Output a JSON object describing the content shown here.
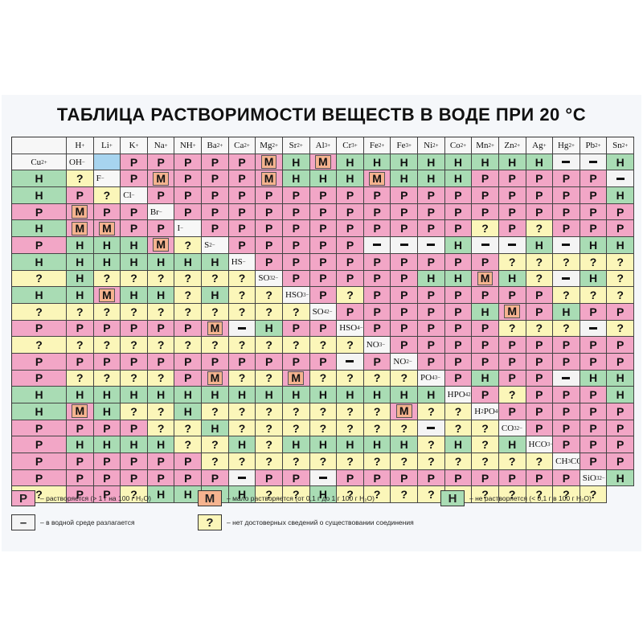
{
  "title": "ТАБЛИЦА РАСТВОРИМОСТИ ВЕЩЕСТВ В ВОДЕ ПРИ 20 °С",
  "chart_data": {
    "type": "table",
    "columns": [
      {
        "base": "H",
        "ch": "+"
      },
      {
        "base": "Li",
        "ch": "+"
      },
      {
        "base": "K",
        "ch": "+"
      },
      {
        "base": "Na",
        "ch": "+"
      },
      {
        "base": "NH",
        "ch": "+"
      },
      {
        "base": "Ba",
        "ch": "2+"
      },
      {
        "base": "Ca",
        "ch": "2+"
      },
      {
        "base": "Mg",
        "ch": "2+"
      },
      {
        "base": "Sr",
        "ch": "2+"
      },
      {
        "base": "Al",
        "ch": "3+"
      },
      {
        "base": "Cr",
        "ch": "3+"
      },
      {
        "base": "Fe",
        "ch": "2+"
      },
      {
        "base": "Fe",
        "ch": "3+"
      },
      {
        "base": "Ni",
        "ch": "2+"
      },
      {
        "base": "Co",
        "ch": "2+"
      },
      {
        "base": "Mn",
        "ch": "2+"
      },
      {
        "base": "Zn",
        "ch": "2+"
      },
      {
        "base": "Ag",
        "ch": "+"
      },
      {
        "base": "Hg",
        "ch": "2+"
      },
      {
        "base": "Pb",
        "ch": "2+"
      },
      {
        "base": "Sn",
        "ch": "2+"
      },
      {
        "base": "Cu",
        "ch": "2+"
      }
    ],
    "rows": [
      {
        "anion": {
          "base": "OH",
          "sub": "",
          "ch": "−"
        },
        "cells": "ERRRRRMNMNNNNNNNNX XNN"
      },
      {
        "anion": {
          "base": "F",
          "sub": "",
          "ch": "−"
        },
        "cells": "RMRRRMNNNMNNNRRRRRX NR"
      },
      {
        "anion": {
          "base": "Cl",
          "sub": "",
          "ch": "−"
        },
        "cells": "RRRRRRRRRRRRRRRRRNRMRR"
      },
      {
        "anion": {
          "base": "Br",
          "sub": "",
          "ch": "−"
        },
        "cells": "RRRRRRRRRRRRRRRRRNMMRR"
      },
      {
        "anion": {
          "base": "I",
          "sub": "",
          "ch": "−"
        },
        "cells": "RRRRRRRRRRDRDRRRRNNNMD"
      },
      {
        "anion": {
          "base": "S",
          "sub": "",
          "ch": "2−"
        },
        "cells": "RRRRRXXXNXXNXNNNNNNNNN"
      },
      {
        "anion": {
          "base": "HS",
          "sub": "",
          "ch": "−"
        },
        "cells": "RRRRRRRRRDDDDDDNDDDDDD"
      },
      {
        "anion": {
          "base": "SO",
          "sub": "3",
          "ch": "2−"
        },
        "cells": "RRRRRNNMNDXNDNNMNNDNDD"
      },
      {
        "anion": {
          "base": "HSO",
          "sub": "3",
          "ch": "−"
        },
        "cells": "RDRRRRRRRDDDDDDDDDDDDD"
      },
      {
        "anion": {
          "base": "SO",
          "sub": "4",
          "ch": "2−"
        },
        "cells": "RRRRRNMRNRRRRRRRRMXNRR"
      },
      {
        "anion": {
          "base": "HSO",
          "sub": "4",
          "ch": "−"
        },
        "cells": "RRRRRDDDXDDDDDDDDDDDDD"
      },
      {
        "anion": {
          "base": "NO",
          "sub": "3",
          "ch": "−"
        },
        "cells": "RRRRRRRRRRRRRRRRRRRRXR"
      },
      {
        "anion": {
          "base": "NO",
          "sub": "2",
          "ch": "−"
        },
        "cells": "RRRRRRRRRDDDDRMDDMDDDD"
      },
      {
        "anion": {
          "base": "PO",
          "sub": "4",
          "ch": "3−"
        },
        "cells": "RNRRXNNNNNNNNNNNNNNNNN"
      },
      {
        "anion": {
          "base": "HPO",
          "sub": "4",
          "ch": "2−"
        },
        "cells": "RDRRRNNMNDDNDDDDDDDMDD"
      },
      {
        "anion": {
          "base": "H",
          "sub": "2",
          "pre": "PO",
          "sub2": "4",
          "ch": "−"
        },
        "cells": "RRRRRRRRRDDNDDDDDDDXDD"
      },
      {
        "anion": {
          "base": "CO",
          "sub": "3",
          "ch": "2−"
        },
        "cells": "RRRRRNNNNDDNDNNNNNDNDN"
      },
      {
        "anion": {
          "base": "HCO",
          "sub": "3",
          "ch": "−"
        },
        "cells": "RRRRRRRRRDDDDDDDDDDDDD"
      },
      {
        "anion": {
          "base": "CH",
          "sub": "3",
          "pre": "COO",
          "sub2": "",
          "ch": "−"
        },
        "cells": "RRRRRRRRRXRRXRRRRRRRRR"
      },
      {
        "anion": {
          "base": "SiO",
          "sub": "3",
          "ch": "2−"
        },
        "cells": "NDRRDNNNNDDNDDDDDDDDDD"
      }
    ],
    "symbols": {
      "R": "Р",
      "M": "М",
      "N": "Н",
      "D": "?",
      "X": "−",
      "E": ""
    }
  },
  "legend": [
    {
      "sym": "Р",
      "cls": "v-R",
      "text": "– растворяется (> 1 г на 100 г H₂O)"
    },
    {
      "sym": "М",
      "cls": "v-M",
      "text": "– мало растворяется (от 0,1 г до 1 г 100 г H₂O)"
    },
    {
      "sym": "Н",
      "cls": "v-N",
      "text": "– не растворяется (< 0,1 г в 100 г H₂O)"
    },
    {
      "sym": "–",
      "cls": "v-X",
      "text": "– в водной среде разлагается"
    },
    {
      "sym": "?",
      "cls": "v-D",
      "text": "– нет достоверных сведений о существовании соединения"
    }
  ],
  "colors": {
    "R": "#f2a6c6",
    "M": "#f5b38f",
    "N": "#a9dcb4",
    "D": "#fbf6b9",
    "X": "#f4f4f4",
    "E": "#a7d4ef"
  }
}
